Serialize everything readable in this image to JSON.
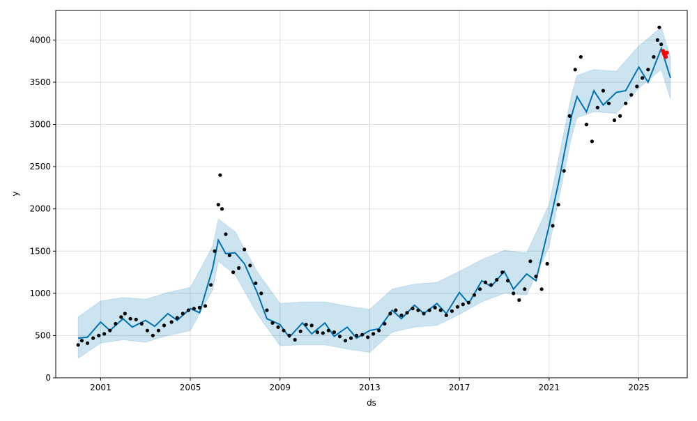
{
  "chart_data": {
    "type": "scatter",
    "title": "",
    "xlabel": "ds",
    "ylabel": "y",
    "xlim": [
      "1999-01-01",
      "2027-03-01"
    ],
    "ylim": [
      0,
      4350
    ],
    "grid": true,
    "x_ticks": [
      "2001",
      "2005",
      "2009",
      "2013",
      "2017",
      "2021",
      "2025"
    ],
    "y_ticks": [
      0,
      500,
      1000,
      1500,
      2000,
      2500,
      3000,
      3500,
      4000
    ],
    "series": [
      {
        "role": "observed",
        "kind": "points",
        "color": "#000000",
        "points": [
          [
            "2000-01-01",
            390
          ],
          [
            "2000-03-01",
            440
          ],
          [
            "2000-06-01",
            410
          ],
          [
            "2000-09-01",
            470
          ],
          [
            "2000-12-01",
            500
          ],
          [
            "2001-03-01",
            520
          ],
          [
            "2001-06-01",
            560
          ],
          [
            "2001-09-01",
            640
          ],
          [
            "2001-12-01",
            720
          ],
          [
            "2002-02-01",
            760
          ],
          [
            "2002-05-01",
            700
          ],
          [
            "2002-08-01",
            690
          ],
          [
            "2002-11-01",
            640
          ],
          [
            "2003-02-01",
            560
          ],
          [
            "2003-05-01",
            500
          ],
          [
            "2003-08-01",
            560
          ],
          [
            "2003-11-01",
            620
          ],
          [
            "2004-03-01",
            660
          ],
          [
            "2004-06-01",
            710
          ],
          [
            "2004-09-01",
            760
          ],
          [
            "2004-12-01",
            800
          ],
          [
            "2005-03-01",
            820
          ],
          [
            "2005-06-01",
            830
          ],
          [
            "2005-09-01",
            850
          ],
          [
            "2005-12-01",
            1100
          ],
          [
            "2006-02-01",
            1500
          ],
          [
            "2006-04-01",
            2050
          ],
          [
            "2006-05-01",
            2400
          ],
          [
            "2006-06-01",
            2000
          ],
          [
            "2006-08-01",
            1700
          ],
          [
            "2006-10-01",
            1450
          ],
          [
            "2006-12-01",
            1250
          ],
          [
            "2007-03-01",
            1300
          ],
          [
            "2007-06-01",
            1520
          ],
          [
            "2007-09-01",
            1330
          ],
          [
            "2007-12-01",
            1120
          ],
          [
            "2008-03-01",
            1000
          ],
          [
            "2008-06-01",
            800
          ],
          [
            "2008-09-01",
            650
          ],
          [
            "2008-12-01",
            600
          ],
          [
            "2009-03-01",
            560
          ],
          [
            "2009-06-01",
            500
          ],
          [
            "2009-09-01",
            450
          ],
          [
            "2009-12-01",
            550
          ],
          [
            "2010-03-01",
            630
          ],
          [
            "2010-06-01",
            620
          ],
          [
            "2010-09-01",
            540
          ],
          [
            "2010-12-01",
            530
          ],
          [
            "2011-03-01",
            560
          ],
          [
            "2011-06-01",
            540
          ],
          [
            "2011-09-01",
            490
          ],
          [
            "2011-12-01",
            440
          ],
          [
            "2012-03-01",
            470
          ],
          [
            "2012-06-01",
            500
          ],
          [
            "2012-09-01",
            510
          ],
          [
            "2012-12-01",
            480
          ],
          [
            "2013-03-01",
            520
          ],
          [
            "2013-06-01",
            560
          ],
          [
            "2013-09-01",
            640
          ],
          [
            "2013-12-01",
            760
          ],
          [
            "2014-03-01",
            800
          ],
          [
            "2014-06-01",
            740
          ],
          [
            "2014-09-01",
            770
          ],
          [
            "2014-12-01",
            820
          ],
          [
            "2015-03-01",
            800
          ],
          [
            "2015-06-01",
            760
          ],
          [
            "2015-09-01",
            800
          ],
          [
            "2015-12-01",
            830
          ],
          [
            "2016-03-01",
            800
          ],
          [
            "2016-06-01",
            740
          ],
          [
            "2016-09-01",
            790
          ],
          [
            "2016-12-01",
            840
          ],
          [
            "2017-03-01",
            870
          ],
          [
            "2017-06-01",
            890
          ],
          [
            "2017-09-01",
            980
          ],
          [
            "2017-12-01",
            1050
          ],
          [
            "2018-03-01",
            1130
          ],
          [
            "2018-06-01",
            1100
          ],
          [
            "2018-09-01",
            1160
          ],
          [
            "2018-12-01",
            1250
          ],
          [
            "2019-03-01",
            1150
          ],
          [
            "2019-06-01",
            1000
          ],
          [
            "2019-09-01",
            920
          ],
          [
            "2019-12-01",
            1050
          ],
          [
            "2020-03-01",
            1380
          ],
          [
            "2020-06-01",
            1200
          ],
          [
            "2020-09-01",
            1050
          ],
          [
            "2020-12-01",
            1350
          ],
          [
            "2021-03-01",
            1800
          ],
          [
            "2021-06-01",
            2050
          ],
          [
            "2021-09-01",
            2450
          ],
          [
            "2021-12-01",
            3100
          ],
          [
            "2022-03-01",
            3650
          ],
          [
            "2022-06-01",
            3800
          ],
          [
            "2022-09-01",
            3000
          ],
          [
            "2022-12-01",
            2800
          ],
          [
            "2023-03-01",
            3200
          ],
          [
            "2023-06-01",
            3400
          ],
          [
            "2023-09-01",
            3250
          ],
          [
            "2023-12-01",
            3050
          ],
          [
            "2024-03-01",
            3100
          ],
          [
            "2024-06-01",
            3250
          ],
          [
            "2024-09-01",
            3350
          ],
          [
            "2024-12-01",
            3450
          ],
          [
            "2025-03-01",
            3550
          ],
          [
            "2025-06-01",
            3650
          ],
          [
            "2025-09-01",
            3800
          ],
          [
            "2025-11-01",
            4000
          ],
          [
            "2025-12-01",
            4150
          ],
          [
            "2026-01-01",
            3950
          ]
        ]
      },
      {
        "role": "highlighted",
        "kind": "points",
        "color": "#ff0000",
        "points": [
          [
            "2026-02-01",
            3870
          ],
          [
            "2026-02-15",
            3840
          ],
          [
            "2026-03-01",
            3820
          ],
          [
            "2026-03-15",
            3800
          ],
          [
            "2026-04-01",
            3850
          ]
        ]
      },
      {
        "role": "forecast",
        "kind": "line",
        "color": "#0072b2",
        "points": [
          [
            "2000-01-01",
            470
          ],
          [
            "2000-06-01",
            480
          ],
          [
            "2001-01-01",
            660
          ],
          [
            "2001-06-01",
            560
          ],
          [
            "2002-01-01",
            700
          ],
          [
            "2002-06-01",
            600
          ],
          [
            "2003-01-01",
            680
          ],
          [
            "2003-06-01",
            610
          ],
          [
            "2004-01-01",
            760
          ],
          [
            "2004-06-01",
            680
          ],
          [
            "2005-01-01",
            820
          ],
          [
            "2005-06-01",
            770
          ],
          [
            "2006-01-01",
            1300
          ],
          [
            "2006-04-01",
            1630
          ],
          [
            "2006-08-01",
            1470
          ],
          [
            "2007-01-01",
            1480
          ],
          [
            "2007-06-01",
            1350
          ],
          [
            "2008-01-01",
            1000
          ],
          [
            "2008-06-01",
            700
          ],
          [
            "2009-01-01",
            630
          ],
          [
            "2009-06-01",
            480
          ],
          [
            "2010-01-01",
            650
          ],
          [
            "2010-06-01",
            520
          ],
          [
            "2011-01-01",
            650
          ],
          [
            "2011-06-01",
            490
          ],
          [
            "2012-01-01",
            600
          ],
          [
            "2012-06-01",
            470
          ],
          [
            "2013-01-01",
            560
          ],
          [
            "2013-06-01",
            580
          ],
          [
            "2014-01-01",
            800
          ],
          [
            "2014-06-01",
            700
          ],
          [
            "2015-01-01",
            860
          ],
          [
            "2015-06-01",
            760
          ],
          [
            "2016-01-01",
            880
          ],
          [
            "2016-06-01",
            760
          ],
          [
            "2017-01-01",
            1010
          ],
          [
            "2017-06-01",
            880
          ],
          [
            "2018-01-01",
            1150
          ],
          [
            "2018-06-01",
            1080
          ],
          [
            "2019-01-01",
            1260
          ],
          [
            "2019-06-01",
            1050
          ],
          [
            "2020-01-01",
            1230
          ],
          [
            "2020-06-01",
            1150
          ],
          [
            "2021-01-01",
            1800
          ],
          [
            "2021-06-01",
            2300
          ],
          [
            "2022-01-01",
            3100
          ],
          [
            "2022-04-01",
            3330
          ],
          [
            "2022-09-01",
            3150
          ],
          [
            "2023-01-01",
            3400
          ],
          [
            "2023-06-01",
            3230
          ],
          [
            "2024-01-01",
            3380
          ],
          [
            "2024-06-01",
            3400
          ],
          [
            "2025-01-01",
            3680
          ],
          [
            "2025-06-01",
            3500
          ],
          [
            "2026-01-01",
            3900
          ],
          [
            "2026-06-01",
            3550
          ]
        ]
      },
      {
        "role": "uncertainty",
        "kind": "band",
        "color": "#0072b2",
        "lower": [
          [
            "2000-01-01",
            230
          ],
          [
            "2001-01-01",
            410
          ],
          [
            "2002-01-01",
            450
          ],
          [
            "2003-01-01",
            420
          ],
          [
            "2004-01-01",
            500
          ],
          [
            "2005-01-01",
            560
          ],
          [
            "2006-01-01",
            1040
          ],
          [
            "2006-04-01",
            1380
          ],
          [
            "2007-01-01",
            1220
          ],
          [
            "2008-01-01",
            750
          ],
          [
            "2009-01-01",
            380
          ],
          [
            "2010-01-01",
            390
          ],
          [
            "2011-01-01",
            390
          ],
          [
            "2012-01-01",
            340
          ],
          [
            "2013-01-01",
            300
          ],
          [
            "2014-01-01",
            540
          ],
          [
            "2015-01-01",
            600
          ],
          [
            "2016-01-01",
            620
          ],
          [
            "2017-01-01",
            750
          ],
          [
            "2018-01-01",
            900
          ],
          [
            "2019-01-01",
            1000
          ],
          [
            "2020-01-01",
            980
          ],
          [
            "2021-01-01",
            1550
          ],
          [
            "2022-01-01",
            2850
          ],
          [
            "2022-04-01",
            3080
          ],
          [
            "2023-01-01",
            3150
          ],
          [
            "2024-01-01",
            3130
          ],
          [
            "2025-01-01",
            3430
          ],
          [
            "2026-01-01",
            3650
          ],
          [
            "2026-06-01",
            3300
          ]
        ],
        "upper": [
          [
            "2000-01-01",
            720
          ],
          [
            "2001-01-01",
            910
          ],
          [
            "2002-01-01",
            950
          ],
          [
            "2003-01-01",
            930
          ],
          [
            "2004-01-01",
            1010
          ],
          [
            "2005-01-01",
            1070
          ],
          [
            "2006-01-01",
            1560
          ],
          [
            "2006-04-01",
            1880
          ],
          [
            "2007-01-01",
            1730
          ],
          [
            "2008-01-01",
            1250
          ],
          [
            "2009-01-01",
            880
          ],
          [
            "2010-01-01",
            900
          ],
          [
            "2011-01-01",
            900
          ],
          [
            "2012-01-01",
            850
          ],
          [
            "2013-01-01",
            810
          ],
          [
            "2014-01-01",
            1050
          ],
          [
            "2015-01-01",
            1110
          ],
          [
            "2016-01-01",
            1130
          ],
          [
            "2017-01-01",
            1260
          ],
          [
            "2018-01-01",
            1400
          ],
          [
            "2019-01-01",
            1510
          ],
          [
            "2020-01-01",
            1480
          ],
          [
            "2021-01-01",
            2050
          ],
          [
            "2022-01-01",
            3350
          ],
          [
            "2022-04-01",
            3580
          ],
          [
            "2023-01-01",
            3650
          ],
          [
            "2024-01-01",
            3630
          ],
          [
            "2025-01-01",
            3930
          ],
          [
            "2026-01-01",
            4150
          ],
          [
            "2026-06-01",
            3800
          ]
        ]
      }
    ]
  }
}
